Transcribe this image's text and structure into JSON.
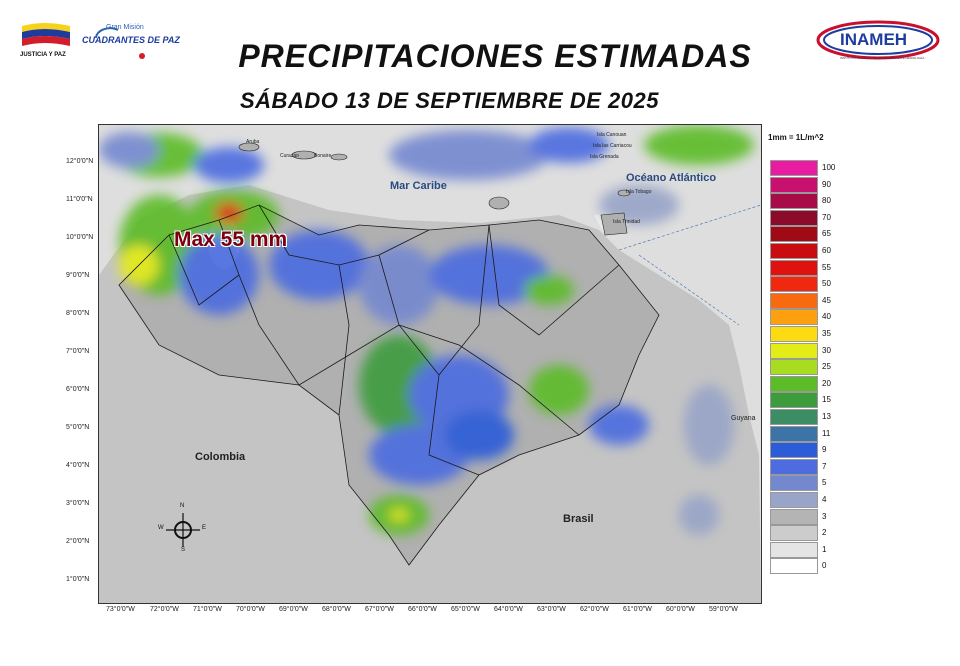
{
  "header": {
    "title": "PRECIPITACIONES ESTIMADAS",
    "subtitle": "SÁBADO 13 DE SEPTIEMBRE DE 2025",
    "logo_left_caption": "JUSTICIA Y PAZ",
    "logo_left_brand_top": "Gran Misión",
    "logo_left_brand": "CUADRANTES DE PAZ",
    "logo_right_brand": "INAMEH",
    "logo_right_caption": "INSTITUTO NACIONAL DE METEOROLOGÍA E HIDROLOGÍA"
  },
  "map": {
    "max_label": "Max 55 mm",
    "places": {
      "caribe": "Mar Caribe",
      "atlantico": "Océano Atlántico",
      "colombia": "Colombia",
      "brasil": "Brasil",
      "guyana": "Guyana",
      "aruba": "Aruba",
      "curazao": "Curazao",
      "bonaire": "Bonaire",
      "canouan": "Isla Canouan",
      "carriacou": "Isla las Carriacou",
      "grenada": "Isla Grenada",
      "tobago": "Isla Tobago",
      "trinidad": "Isla Trinidad"
    },
    "lat_labels": [
      "12°0'0\"N",
      "11°0'0\"N",
      "10°0'0\"N",
      "9°0'0\"N",
      "8°0'0\"N",
      "7°0'0\"N",
      "6°0'0\"N",
      "5°0'0\"N",
      "4°0'0\"N",
      "3°0'0\"N",
      "2°0'0\"N",
      "1°0'0\"N"
    ],
    "lon_labels": [
      "73°0'0\"W",
      "72°0'0\"W",
      "71°0'0\"W",
      "70°0'0\"W",
      "69°0'0\"W",
      "68°0'0\"W",
      "67°0'0\"W",
      "66°0'0\"W",
      "65°0'0\"W",
      "64°0'0\"W",
      "63°0'0\"W",
      "62°0'0\"W",
      "61°0'0\"W",
      "60°0'0\"W",
      "59°0'0\"W"
    ],
    "compass": {
      "n": "N",
      "s": "S",
      "e": "E",
      "w": "W"
    }
  },
  "legend": {
    "title": "1mm = 1L/m^2",
    "items": [
      {
        "label": "100",
        "color": "#e81ca0"
      },
      {
        "label": "90",
        "color": "#c8106f"
      },
      {
        "label": "80",
        "color": "#a80c48"
      },
      {
        "label": "70",
        "color": "#8c0a2a"
      },
      {
        "label": "65",
        "color": "#a00a14"
      },
      {
        "label": "60",
        "color": "#c80c10"
      },
      {
        "label": "55",
        "color": "#e01210"
      },
      {
        "label": "50",
        "color": "#f02810"
      },
      {
        "label": "45",
        "color": "#f86a10"
      },
      {
        "label": "40",
        "color": "#fca010"
      },
      {
        "label": "35",
        "color": "#fcdc10"
      },
      {
        "label": "30",
        "color": "#e4ec18"
      },
      {
        "label": "25",
        "color": "#a8dc20"
      },
      {
        "label": "20",
        "color": "#5cbc28"
      },
      {
        "label": "15",
        "color": "#3c9c3c"
      },
      {
        "label": "13",
        "color": "#3c8c64"
      },
      {
        "label": "11",
        "color": "#3c74a8"
      },
      {
        "label": "9",
        "color": "#2c5cd8"
      },
      {
        "label": "7",
        "color": "#4c6ce0"
      },
      {
        "label": "5",
        "color": "#7488d0"
      },
      {
        "label": "4",
        "color": "#98a4c8"
      },
      {
        "label": "3",
        "color": "#b4b4b4"
      },
      {
        "label": "2",
        "color": "#cccccc"
      },
      {
        "label": "1",
        "color": "#e4e4e4"
      },
      {
        "label": "0",
        "color": "#ffffff"
      }
    ]
  }
}
